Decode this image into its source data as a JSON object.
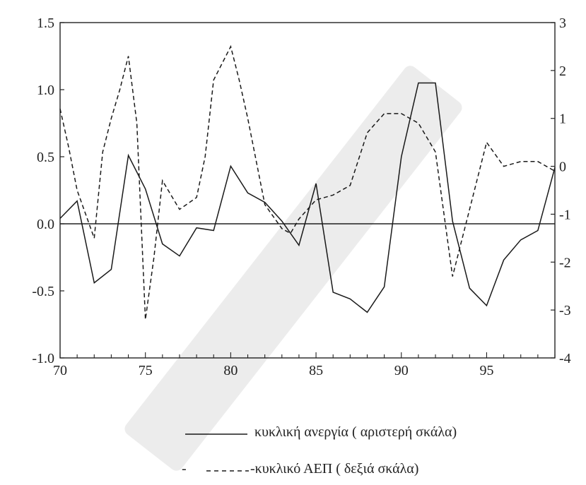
{
  "chart_data": {
    "type": "line",
    "title": "",
    "xlabel": "",
    "ylabel": "",
    "xlim": [
      70,
      99
    ],
    "ylim_left": [
      -1.0,
      1.5
    ],
    "ylim_right": [
      -4,
      3
    ],
    "x_ticks": [
      70,
      75,
      80,
      85,
      90,
      95
    ],
    "x_tick_labels": [
      "70",
      "75",
      "80",
      "85",
      "90",
      "95"
    ],
    "left_ticks": [
      -1.0,
      -0.5,
      0.0,
      0.5,
      1.0,
      1.5
    ],
    "left_tick_labels": [
      "-1.0",
      "-0.5",
      "0.0",
      "0.5",
      "1.0",
      "1.5"
    ],
    "right_ticks": [
      -4,
      -3,
      -2,
      -1,
      0,
      1,
      2,
      3
    ],
    "right_tick_labels": [
      "-4",
      "-3",
      "-2",
      "-1",
      "0",
      "1",
      "2",
      "3"
    ],
    "zero_line": 0.0,
    "legend_position": "bottom",
    "series": [
      {
        "name": "κυκλική ανεργία ( αριστερή σκάλα)",
        "axis": "left",
        "style": "solid",
        "color": "#1a1a1a",
        "x": [
          70,
          71,
          72,
          73,
          74,
          75,
          76,
          77,
          78,
          79,
          80,
          81,
          82,
          83,
          84,
          85,
          86,
          87,
          88,
          89,
          90,
          91,
          92,
          93,
          94,
          95,
          96,
          97,
          98,
          99
        ],
        "values": [
          0.04,
          0.17,
          -0.44,
          -0.34,
          0.51,
          0.26,
          -0.15,
          -0.24,
          -0.03,
          -0.05,
          0.43,
          0.23,
          0.16,
          0.02,
          -0.16,
          0.3,
          -0.51,
          -0.56,
          -0.66,
          -0.47,
          0.5,
          1.05,
          1.05,
          0.02,
          -0.48,
          -0.61,
          -0.27,
          -0.12,
          -0.05,
          0.42
        ]
      },
      {
        "name": "κυκλικό ΑΕΠ ( δεξιά σκάλα)",
        "axis": "right",
        "style": "dashed",
        "color": "#1a1a1a",
        "x": [
          70,
          70.5,
          71,
          72,
          72.5,
          73,
          73.5,
          74,
          74.5,
          75,
          75.5,
          76,
          77,
          78,
          78.5,
          79,
          80,
          80.5,
          81,
          82,
          83,
          83.5,
          84,
          85,
          86,
          87,
          88,
          89,
          90,
          91,
          92,
          93,
          94,
          95,
          96,
          97,
          98,
          99
        ],
        "values": [
          1.2,
          0.4,
          -0.5,
          -1.5,
          0.3,
          1.0,
          1.6,
          2.3,
          0.9,
          -3.2,
          -1.9,
          -0.3,
          -0.9,
          -0.65,
          0.2,
          1.8,
          2.5,
          1.8,
          1.0,
          -0.8,
          -1.3,
          -1.4,
          -1.1,
          -0.7,
          -0.6,
          -0.4,
          0.7,
          1.1,
          1.1,
          0.9,
          0.3,
          -2.3,
          -0.9,
          0.5,
          0.0,
          0.1,
          0.1,
          -0.1
        ]
      }
    ]
  },
  "legend": {
    "solid_label": "κυκλική ανεργία ( αριστερή σκάλα)",
    "dashed_label": "-κυκλικό ΑΕΠ ( δεξιά σκάλα)",
    "dashed_prefix": "-"
  }
}
